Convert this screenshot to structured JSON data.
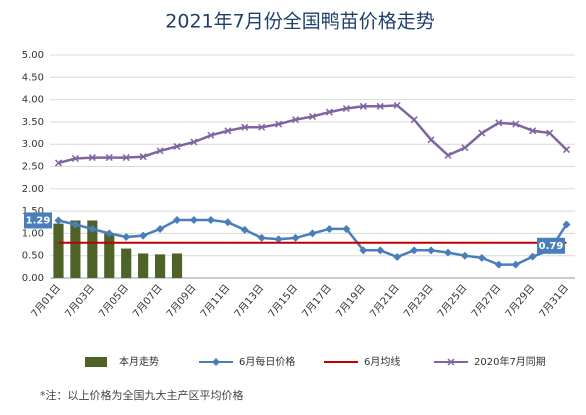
{
  "chart_data": {
    "type": "combo",
    "title": "2021年7月份全国鸭苗价格走势",
    "note": "*注：以上价格为全国九大主产区平均价格",
    "categories": [
      "7月01日",
      null,
      "7月03日",
      null,
      "7月05日",
      null,
      "7月07日",
      null,
      "7月09日",
      null,
      "7月11日",
      null,
      "7月13日",
      null,
      "7月15日",
      null,
      "7月17日",
      null,
      "7月19日",
      null,
      "7月21日",
      null,
      "7月23日",
      null,
      "7月25日",
      null,
      "7月27日",
      null,
      "7月29日",
      null,
      "7月31日"
    ],
    "ylim": [
      0,
      5
    ],
    "yticks": [
      {
        "value": 0,
        "label": "0.00"
      },
      {
        "value": 0.5,
        "label": "0.50"
      },
      {
        "value": 1,
        "label": "1.00"
      },
      {
        "value": 1.5,
        "label": "1.50"
      },
      {
        "value": 2,
        "label": "2.00"
      },
      {
        "value": 2.5,
        "label": "2.50"
      },
      {
        "value": 3,
        "label": "3.00"
      },
      {
        "value": 3.5,
        "label": "3.50"
      },
      {
        "value": 4,
        "label": "4.00"
      },
      {
        "value": 4.5,
        "label": "4.50"
      },
      {
        "value": 5,
        "label": "5.00"
      }
    ],
    "grid": true,
    "series": [
      {
        "name": "本月走势",
        "kind": "bar",
        "color": "#4f6228",
        "values": [
          1.22,
          1.29,
          1.29,
          1.0,
          0.66,
          0.55,
          0.53,
          0.55,
          null,
          null,
          null,
          null,
          null,
          null,
          null,
          null,
          null,
          null,
          null,
          null,
          null,
          null,
          null,
          null,
          null,
          null,
          null,
          null,
          null,
          null,
          null
        ]
      },
      {
        "name": "6月每日价格",
        "kind": "line",
        "marker": "diamond",
        "color": "#4a7ebb",
        "values": [
          1.29,
          1.2,
          1.1,
          1.0,
          0.92,
          0.95,
          1.1,
          1.3,
          1.3,
          1.3,
          1.25,
          1.08,
          0.9,
          0.87,
          0.9,
          1.0,
          1.1,
          1.1,
          0.62,
          0.62,
          0.47,
          0.62,
          0.62,
          0.57,
          0.5,
          0.45,
          0.3,
          0.3,
          0.48,
          0.62,
          1.2
        ]
      },
      {
        "name": "6月均线",
        "kind": "line",
        "color": "#c00000",
        "values": [
          0.79,
          0.79,
          0.79,
          0.79,
          0.79,
          0.79,
          0.79,
          0.79,
          0.79,
          0.79,
          0.79,
          0.79,
          0.79,
          0.79,
          0.79,
          0.79,
          0.79,
          0.79,
          0.79,
          0.79,
          0.79,
          0.79,
          0.79,
          0.79,
          0.79,
          0.79,
          0.79,
          0.79,
          0.79,
          0.79,
          0.79
        ]
      },
      {
        "name": "2020年7月同期",
        "kind": "line",
        "marker": "x",
        "color": "#8064a2",
        "values": [
          2.58,
          2.68,
          2.7,
          2.7,
          2.7,
          2.72,
          2.85,
          2.95,
          3.05,
          3.2,
          3.3,
          3.38,
          3.38,
          3.45,
          3.55,
          3.62,
          3.72,
          3.8,
          3.85,
          3.85,
          3.87,
          3.55,
          3.1,
          2.75,
          2.92,
          3.25,
          3.48,
          3.45,
          3.3,
          3.25,
          2.88
        ]
      }
    ]
  }
}
